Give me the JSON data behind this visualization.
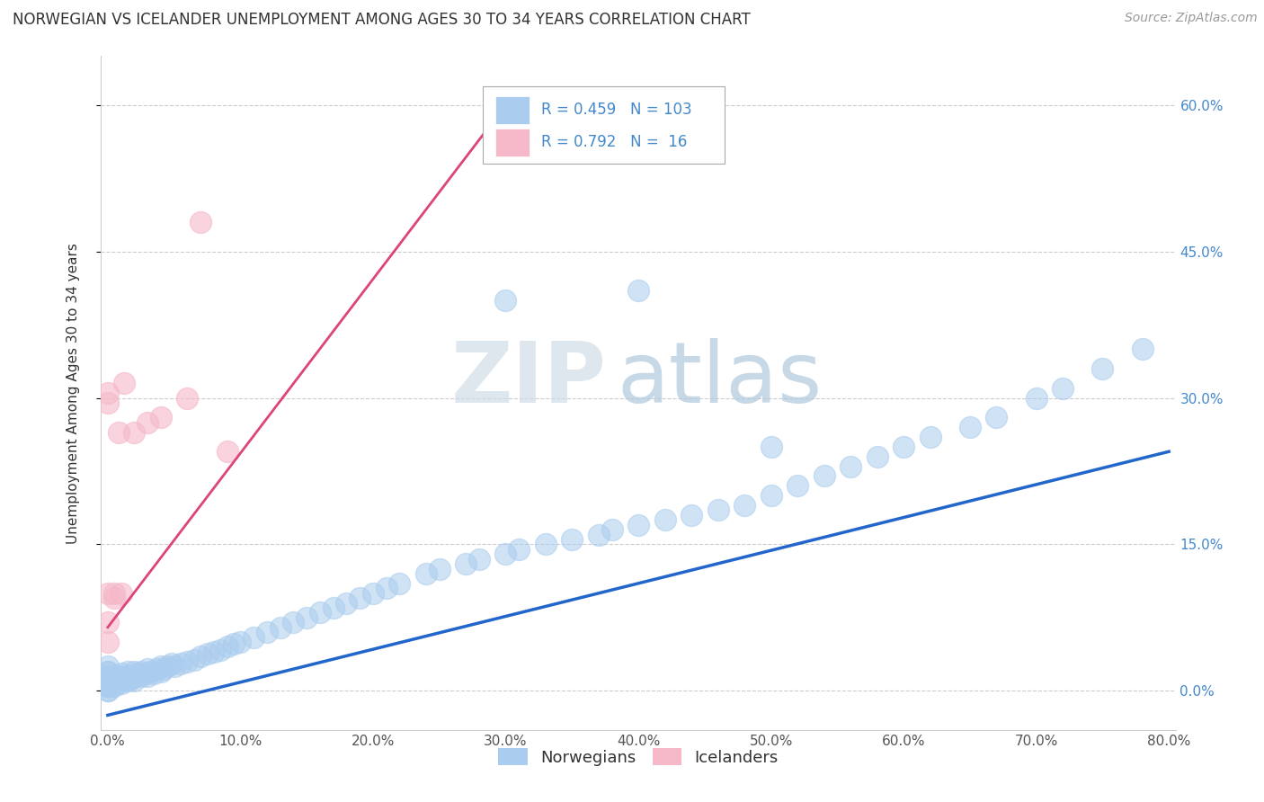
{
  "title": "NORWEGIAN VS ICELANDER UNEMPLOYMENT AMONG AGES 30 TO 34 YEARS CORRELATION CHART",
  "source": "Source: ZipAtlas.com",
  "ylabel": "Unemployment Among Ages 30 to 34 years",
  "r_norwegian": 0.459,
  "n_norwegian": 103,
  "r_icelander": 0.792,
  "n_icelander": 16,
  "xlim": [
    -0.005,
    0.805
  ],
  "ylim": [
    -0.04,
    0.65
  ],
  "xticks": [
    0.0,
    0.1,
    0.2,
    0.3,
    0.4,
    0.5,
    0.6,
    0.7,
    0.8
  ],
  "yticks": [
    0.0,
    0.15,
    0.3,
    0.45,
    0.6
  ],
  "ytick_labels": [
    "0.0%",
    "15.0%",
    "30.0%",
    "45.0%",
    "60.0%"
  ],
  "xtick_labels": [
    "0.0%",
    "10.0%",
    "20.0%",
    "30.0%",
    "40.0%",
    "50.0%",
    "60.0%",
    "70.0%",
    "80.0%"
  ],
  "norwegian_color": "#aaccee",
  "icelander_color": "#f5b8c8",
  "line_norwegian_color": "#2266cc",
  "line_icelander_color": "#dd4477",
  "watermark_zip": "ZIP",
  "watermark_atlas": "atlas",
  "background_color": "#ffffff",
  "title_fontsize": 12,
  "axis_label_fontsize": 11,
  "tick_fontsize": 11,
  "nor_x": [
    0.0,
    0.0,
    0.0,
    0.0,
    0.0,
    0.0,
    0.0,
    0.0,
    0.0,
    0.0,
    0.0,
    0.0,
    0.0,
    0.0,
    0.0,
    0.005,
    0.005,
    0.005,
    0.005,
    0.005,
    0.007,
    0.007,
    0.01,
    0.01,
    0.01,
    0.01,
    0.012,
    0.012,
    0.015,
    0.015,
    0.015,
    0.018,
    0.02,
    0.02,
    0.02,
    0.022,
    0.025,
    0.025,
    0.028,
    0.03,
    0.03,
    0.032,
    0.035,
    0.037,
    0.04,
    0.04,
    0.042,
    0.045,
    0.048,
    0.05,
    0.055,
    0.06,
    0.065,
    0.07,
    0.075,
    0.08,
    0.085,
    0.09,
    0.095,
    0.1,
    0.11,
    0.12,
    0.13,
    0.14,
    0.15,
    0.16,
    0.17,
    0.18,
    0.19,
    0.2,
    0.21,
    0.22,
    0.24,
    0.25,
    0.27,
    0.28,
    0.3,
    0.31,
    0.33,
    0.35,
    0.37,
    0.38,
    0.4,
    0.42,
    0.44,
    0.46,
    0.48,
    0.5,
    0.52,
    0.54,
    0.56,
    0.58,
    0.6,
    0.62,
    0.65,
    0.67,
    0.7,
    0.72,
    0.75,
    0.78,
    0.3,
    0.4,
    0.5
  ],
  "nor_y": [
    0.0,
    0.0,
    0.005,
    0.005,
    0.008,
    0.008,
    0.01,
    0.01,
    0.012,
    0.012,
    0.015,
    0.015,
    0.02,
    0.02,
    0.025,
    0.005,
    0.008,
    0.01,
    0.012,
    0.015,
    0.008,
    0.012,
    0.008,
    0.01,
    0.012,
    0.018,
    0.01,
    0.015,
    0.01,
    0.015,
    0.02,
    0.012,
    0.01,
    0.015,
    0.02,
    0.018,
    0.015,
    0.02,
    0.018,
    0.015,
    0.022,
    0.02,
    0.018,
    0.022,
    0.02,
    0.025,
    0.022,
    0.025,
    0.028,
    0.025,
    0.028,
    0.03,
    0.032,
    0.035,
    0.038,
    0.04,
    0.042,
    0.045,
    0.048,
    0.05,
    0.055,
    0.06,
    0.065,
    0.07,
    0.075,
    0.08,
    0.085,
    0.09,
    0.095,
    0.1,
    0.105,
    0.11,
    0.12,
    0.125,
    0.13,
    0.135,
    0.14,
    0.145,
    0.15,
    0.155,
    0.16,
    0.165,
    0.17,
    0.175,
    0.18,
    0.185,
    0.19,
    0.2,
    0.21,
    0.22,
    0.23,
    0.24,
    0.25,
    0.26,
    0.27,
    0.28,
    0.3,
    0.31,
    0.33,
    0.35,
    0.4,
    0.41,
    0.25
  ],
  "ice_x": [
    0.0,
    0.0,
    0.0,
    0.0,
    0.0,
    0.005,
    0.005,
    0.008,
    0.01,
    0.012,
    0.02,
    0.03,
    0.04,
    0.06,
    0.07,
    0.09
  ],
  "ice_y": [
    0.05,
    0.07,
    0.1,
    0.295,
    0.305,
    0.095,
    0.1,
    0.265,
    0.1,
    0.315,
    0.265,
    0.275,
    0.28,
    0.3,
    0.48,
    0.245
  ],
  "line_nor_x0": 0.0,
  "line_nor_x1": 0.8,
  "line_nor_y0": -0.025,
  "line_nor_y1": 0.245,
  "line_ice_x0": 0.0,
  "line_ice_x1": 0.3,
  "line_ice_y0": 0.065,
  "line_ice_y1": 0.6
}
